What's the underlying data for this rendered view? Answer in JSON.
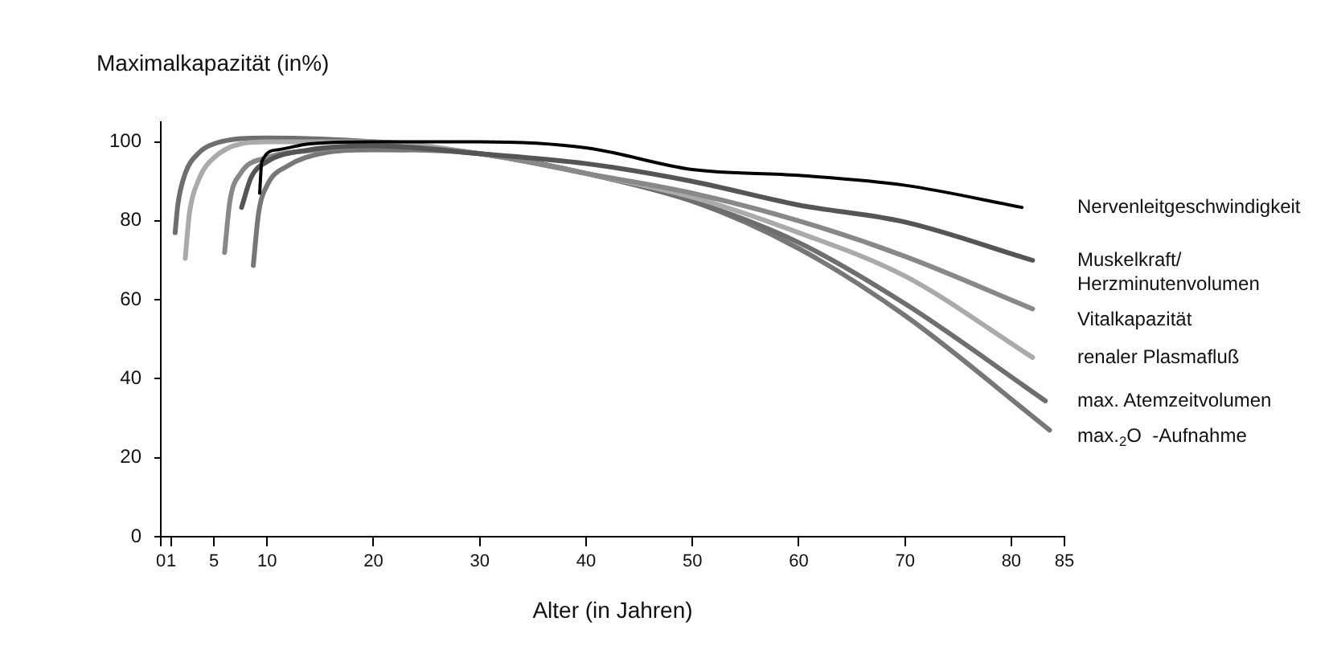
{
  "chart_data": {
    "type": "line",
    "ylabel": "Maximalkapazität (in%)",
    "xlabel": "Alter (in Jahren)",
    "xlim": [
      0,
      85
    ],
    "xticks": [
      0,
      1,
      5,
      10,
      20,
      30,
      40,
      50,
      60,
      70,
      80,
      85
    ],
    "ylim": [
      0,
      105
    ],
    "yticks": [
      0,
      20,
      40,
      60,
      80,
      100
    ],
    "grid": false,
    "legend": false,
    "marker": "none",
    "line_style": "solid",
    "series": [
      {
        "name": "Nervenleitgeschwindigkeit",
        "color": "#000000",
        "x": [
          9.3,
          9.5,
          11,
          14,
          20,
          30,
          40,
          50,
          60,
          70,
          81
        ],
        "values": [
          87,
          95,
          98,
          99.5,
          100,
          100,
          98.5,
          93,
          91.5,
          89,
          83.4
        ]
      },
      {
        "name": "Muskelkraft/Herzminutenvolumen",
        "color": "#555555",
        "x": [
          7.6,
          8.5,
          10,
          14,
          20,
          30,
          40,
          50,
          60,
          70,
          82
        ],
        "values": [
          83.4,
          91,
          95,
          98,
          99,
          97,
          94.5,
          90,
          84,
          79.7,
          70
        ]
      },
      {
        "name": "Vitalkapazität",
        "color": "#888888",
        "x": [
          6,
          6.5,
          7.5,
          10,
          15,
          20,
          30,
          40,
          50,
          60,
          70,
          82
        ],
        "values": [
          72,
          85,
          92,
          96,
          98,
          99,
          97,
          92,
          87,
          80,
          71,
          57.7
        ]
      },
      {
        "name": "renaler Plasmafluß",
        "color": "#aaaaaa",
        "x": [
          2.3,
          2.7,
          3.5,
          5,
          10,
          20,
          30,
          40,
          50,
          60,
          70,
          82
        ],
        "values": [
          70.5,
          82,
          90,
          96,
          100,
          100,
          97,
          92,
          86,
          77,
          66,
          45.4
        ]
      },
      {
        "name": "max. Atemzeitvolumen",
        "color": "#6e6e6e",
        "x": [
          1.35,
          1.6,
          2.3,
          3.5,
          5,
          10,
          20,
          30,
          40,
          50,
          60,
          70,
          83.2
        ],
        "values": [
          77,
          84,
          92,
          97,
          99.5,
          101,
          100,
          97,
          92,
          85,
          74.5,
          59,
          34.4
        ]
      },
      {
        "name": "max.$_{2}$O  -Aufnahme",
        "color": "#777777",
        "x": [
          8.7,
          9.2,
          10,
          12,
          15,
          20,
          30,
          40,
          50,
          60,
          70,
          83.6
        ],
        "values": [
          68.7,
          82,
          89,
          94,
          97,
          98,
          97,
          92,
          85,
          73,
          56,
          27
        ]
      }
    ]
  }
}
